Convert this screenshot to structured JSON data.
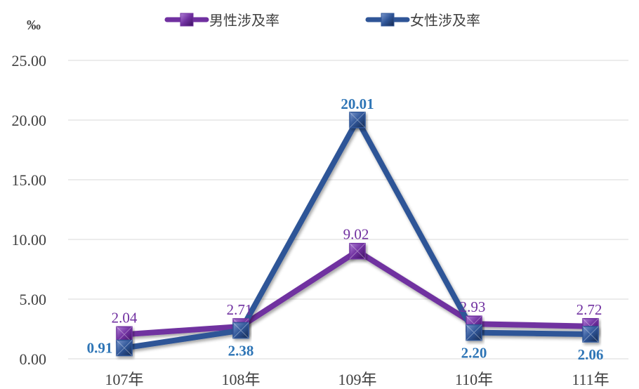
{
  "unit_label": "‰",
  "colors": {
    "male": "#7030A0",
    "female": "#2F5597",
    "male_label": "#7030A0",
    "female_label": "#2E75B6",
    "grid": "#d9d9d9"
  },
  "chart_data": {
    "type": "line",
    "categories": [
      "107年",
      "108年",
      "109年",
      "110年",
      "111年"
    ],
    "ylim": [
      0,
      25
    ],
    "yticks": [
      "0.00",
      "5.00",
      "10.00",
      "15.00",
      "20.00",
      "25.00"
    ],
    "grid": true,
    "legend_position": "top",
    "series": [
      {
        "name": "男性涉及率",
        "key": "male",
        "values": [
          2.04,
          2.71,
          9.02,
          2.93,
          2.72
        ],
        "labels": [
          "2.04",
          "2.71",
          "9.02",
          "2.93",
          "2.72"
        ]
      },
      {
        "name": "女性涉及率",
        "key": "female",
        "values": [
          0.91,
          2.38,
          20.01,
          2.2,
          2.06
        ],
        "labels": [
          "0.91",
          "2.38",
          "20.01",
          "2.20",
          "2.06"
        ]
      }
    ]
  }
}
